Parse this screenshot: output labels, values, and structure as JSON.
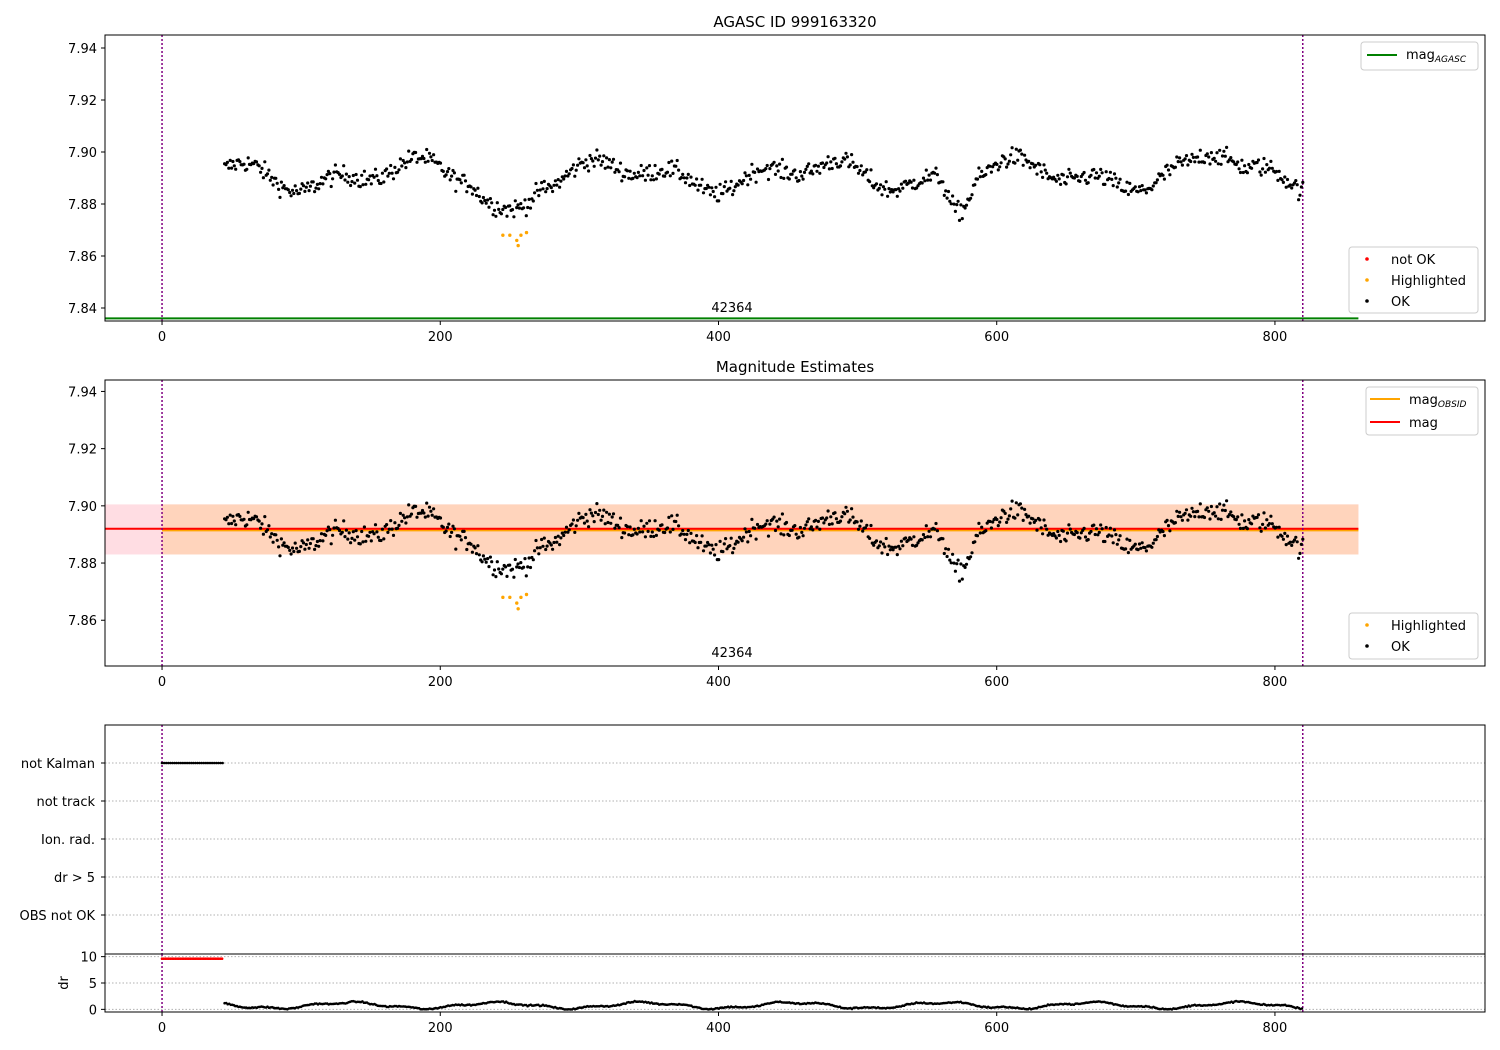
{
  "figure": {
    "type": "scatter",
    "xlim": [
      -41,
      951
    ],
    "xticks": [
      0,
      200,
      400,
      600,
      800
    ],
    "colors": {
      "ok": "#000000",
      "highlighted": "#ffa500",
      "not_ok": "#ff0000",
      "agasc": "#008000",
      "obsid_mean": "#ffa500",
      "mag_line": "#ff0000",
      "obs_edge": "#800080",
      "band_red": "#ffdde3",
      "band_orange": "#ffd4bc"
    }
  },
  "chart_data": [
    {
      "type": "scatter",
      "title": "AGASC ID 999163320",
      "xlabel": "",
      "ylabel": "",
      "ylim": [
        7.835,
        7.945
      ],
      "yticks": [
        "7.84",
        "7.86",
        "7.88",
        "7.90",
        "7.92",
        "7.94"
      ],
      "ytick_values": [
        7.84,
        7.86,
        7.88,
        7.9,
        7.92,
        7.94
      ],
      "obs_label": "42364",
      "obs_boundaries": [
        0,
        820
      ],
      "agasc_mag": 7.836,
      "agasc_xrange": [
        -41,
        860
      ],
      "legend_lines": [
        {
          "label": "mag",
          "sub": "AGASC",
          "color_key": "agasc"
        }
      ],
      "legend_points": [
        {
          "label": "not OK",
          "color_key": "not_ok"
        },
        {
          "label": "Highlighted",
          "color_key": "highlighted"
        },
        {
          "label": "OK",
          "color_key": "ok"
        }
      ],
      "series": [
        {
          "name": "OK",
          "color_key": "ok",
          "x_start": 45,
          "x_end": 820,
          "points": 780,
          "approx_mean": 7.891
        },
        {
          "name": "Highlighted",
          "color_key": "highlighted",
          "x": [
            245,
            250,
            255,
            256,
            258,
            262
          ],
          "y": [
            7.868,
            7.868,
            7.866,
            7.864,
            7.868,
            7.869
          ]
        }
      ]
    },
    {
      "type": "scatter",
      "title": "Magnitude Estimates",
      "xlabel": "",
      "ylabel": "",
      "ylim": [
        7.844,
        7.944
      ],
      "yticks": [
        "7.86",
        "7.88",
        "7.90",
        "7.92",
        "7.94"
      ],
      "ytick_values": [
        7.86,
        7.88,
        7.9,
        7.92,
        7.94
      ],
      "obs_label": "42364",
      "obs_boundaries": [
        0,
        820
      ],
      "mag": 7.892,
      "mag_obsid": 7.8915,
      "band": [
        7.883,
        7.9005
      ],
      "band_xrange": [
        -41,
        860
      ],
      "legend_lines": [
        {
          "label": "mag",
          "sub": "OBSID",
          "color_key": "obsid_mean"
        },
        {
          "label": "mag",
          "sub": "",
          "color_key": "mag_line"
        }
      ],
      "legend_points": [
        {
          "label": "Highlighted",
          "color_key": "highlighted"
        },
        {
          "label": "OK",
          "color_key": "ok"
        }
      ],
      "series": [
        {
          "name": "OK",
          "color_key": "ok",
          "x_start": 45,
          "x_end": 820,
          "points": 780,
          "approx_mean": 7.891
        },
        {
          "name": "Highlighted",
          "color_key": "highlighted",
          "x": [
            245,
            250,
            255,
            256,
            258,
            262
          ],
          "y": [
            7.868,
            7.868,
            7.866,
            7.864,
            7.868,
            7.869
          ]
        }
      ]
    },
    {
      "type": "scatter",
      "title": "",
      "categories": [
        "not Kalman",
        "not track",
        "Ion. rad.",
        "dr > 5",
        "OBS not OK"
      ],
      "flag_series": [
        {
          "category": "not Kalman",
          "x_range": [
            0,
            44
          ],
          "color_key": "ok"
        }
      ],
      "obs_boundaries": [
        0,
        820
      ]
    },
    {
      "type": "scatter",
      "title": "",
      "ylabel": "dr",
      "ylim": [
        -0.5,
        10.5
      ],
      "yticks": [
        "0",
        "5",
        "10"
      ],
      "ytick_values": [
        0,
        5,
        10
      ],
      "obs_boundaries": [
        0,
        820
      ],
      "series": [
        {
          "name": "dr (clipped)",
          "color_key": "not_ok",
          "x_range": [
            0,
            44
          ],
          "value": 9.6
        },
        {
          "name": "dr",
          "color_key": "ok",
          "x_range": [
            45,
            820
          ],
          "range": [
            0.0,
            1.6
          ]
        }
      ]
    }
  ]
}
